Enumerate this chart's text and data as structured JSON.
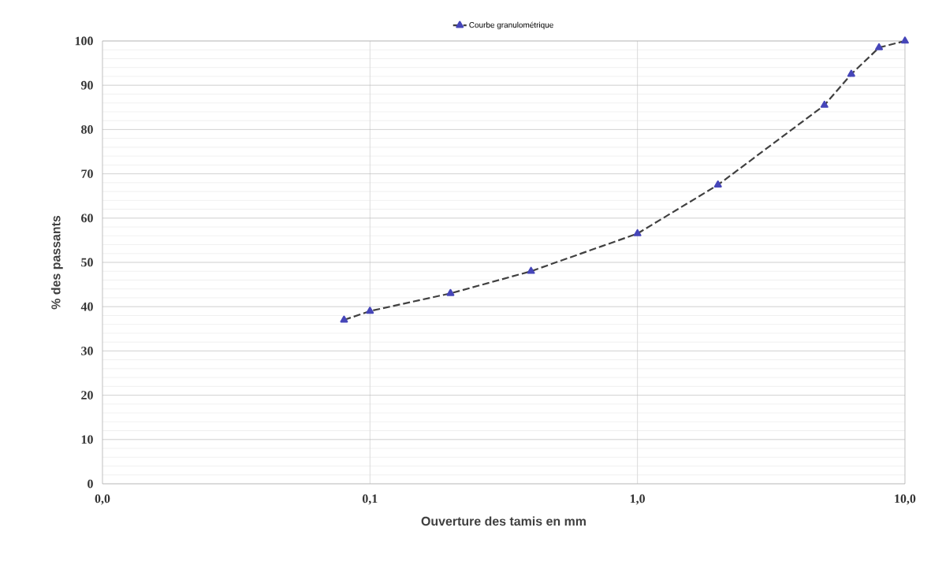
{
  "chart_data": {
    "type": "line",
    "xlabel": "Ouverture des tamis en mm",
    "ylabel": "% des passants",
    "log": "x",
    "xlim": [
      0.01,
      10
    ],
    "ylim": [
      0,
      100
    ],
    "xticks": [
      {
        "value": 0.01,
        "label": "0,0"
      },
      {
        "value": 0.1,
        "label": "0,1"
      },
      {
        "value": 1,
        "label": "1,0"
      },
      {
        "value": 10,
        "label": "10,0"
      }
    ],
    "yticks": [
      0,
      10,
      20,
      30,
      40,
      50,
      60,
      70,
      80,
      90,
      100
    ],
    "grid": true,
    "legend": "top",
    "marker": "triangle",
    "line_style": "dashed",
    "series": [
      {
        "name": "Courbe granulométrique",
        "color": "#404040",
        "x": [
          0.08,
          0.1,
          0.2,
          0.4,
          1,
          2,
          5,
          6.3,
          8,
          10
        ],
        "values": [
          37,
          39,
          43,
          48,
          56.5,
          67.5,
          85.5,
          92.5,
          98.5,
          100
        ]
      }
    ]
  }
}
